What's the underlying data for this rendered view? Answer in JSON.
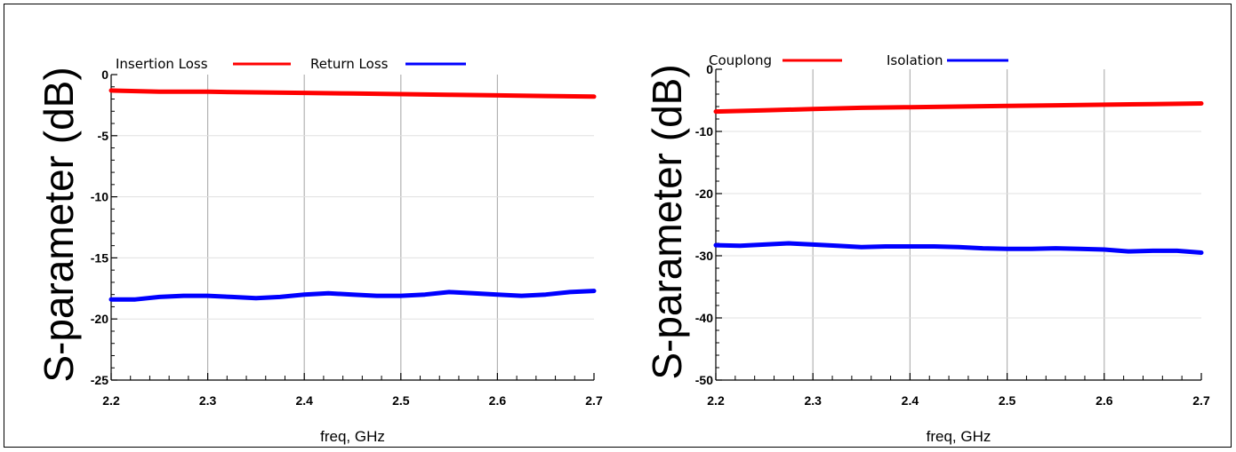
{
  "chart_data": [
    {
      "type": "line",
      "xlabel": "freq, GHz",
      "ylabel": "S-parameter (dB)",
      "xlim": [
        2.2,
        2.7
      ],
      "ylim": [
        -25,
        0
      ],
      "xticks": [
        "2.2",
        "2.3",
        "2.4",
        "2.5",
        "2.6",
        "2.7"
      ],
      "yticks": [
        "0",
        "-5",
        "-10",
        "-15",
        "-20",
        "-25"
      ],
      "grid": true,
      "legend_position": "top-left",
      "series": [
        {
          "name": "Insertion Loss",
          "color": "#ff0000",
          "x": [
            2.2,
            2.25,
            2.3,
            2.35,
            2.4,
            2.45,
            2.5,
            2.55,
            2.6,
            2.65,
            2.7
          ],
          "y": [
            -1.3,
            -1.4,
            -1.4,
            -1.45,
            -1.5,
            -1.55,
            -1.6,
            -1.65,
            -1.7,
            -1.75,
            -1.8
          ]
        },
        {
          "name": "Return Loss",
          "color": "#0000ff",
          "x": [
            2.2,
            2.225,
            2.25,
            2.275,
            2.3,
            2.325,
            2.35,
            2.375,
            2.4,
            2.425,
            2.45,
            2.475,
            2.5,
            2.525,
            2.55,
            2.575,
            2.6,
            2.625,
            2.65,
            2.675,
            2.7
          ],
          "y": [
            -18.4,
            -18.4,
            -18.2,
            -18.1,
            -18.1,
            -18.2,
            -18.3,
            -18.2,
            -18.0,
            -17.9,
            -18.0,
            -18.1,
            -18.1,
            -18.0,
            -17.8,
            -17.9,
            -18.0,
            -18.1,
            -18.0,
            -17.8,
            -17.7
          ]
        }
      ]
    },
    {
      "type": "line",
      "xlabel": "freq, GHz",
      "ylabel": "S-parameter (dB)",
      "xlim": [
        2.2,
        2.7
      ],
      "ylim": [
        -50,
        0
      ],
      "xticks": [
        "2.2",
        "2.3",
        "2.4",
        "2.5",
        "2.6",
        "2.7"
      ],
      "yticks": [
        "0",
        "-10",
        "-20",
        "-30",
        "-40",
        "-50"
      ],
      "grid": true,
      "legend_position": "top-left",
      "series": [
        {
          "name": "Couplong",
          "color": "#ff0000",
          "x": [
            2.2,
            2.25,
            2.3,
            2.35,
            2.4,
            2.45,
            2.5,
            2.55,
            2.6,
            2.65,
            2.7
          ],
          "y": [
            -6.8,
            -6.6,
            -6.4,
            -6.2,
            -6.1,
            -6.0,
            -5.9,
            -5.8,
            -5.7,
            -5.6,
            -5.5
          ]
        },
        {
          "name": "Isolation",
          "color": "#0000ff",
          "x": [
            2.2,
            2.225,
            2.25,
            2.275,
            2.3,
            2.325,
            2.35,
            2.375,
            2.4,
            2.425,
            2.45,
            2.475,
            2.5,
            2.525,
            2.55,
            2.575,
            2.6,
            2.625,
            2.65,
            2.675,
            2.7
          ],
          "y": [
            -28.3,
            -28.4,
            -28.2,
            -28.0,
            -28.2,
            -28.4,
            -28.6,
            -28.5,
            -28.5,
            -28.5,
            -28.6,
            -28.8,
            -28.9,
            -28.9,
            -28.8,
            -28.9,
            -29.0,
            -29.3,
            -29.2,
            -29.2,
            -29.5
          ]
        }
      ]
    }
  ]
}
